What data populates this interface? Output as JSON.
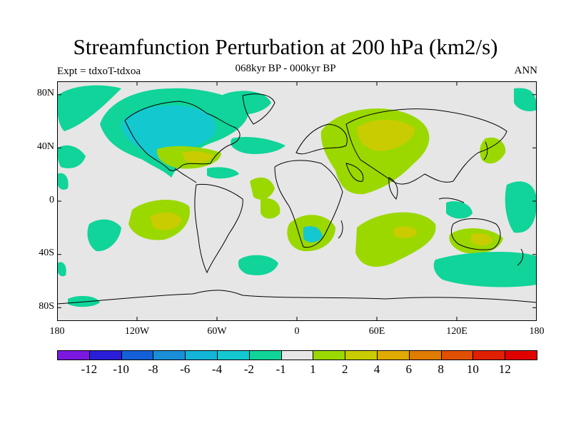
{
  "title": "Streamfunction Perturbation at 200 hPa (km2/s)",
  "left_label": "Expt = tdxoT-tdxoa",
  "center_label": "068kyr BP - 000kyr BP",
  "right_label": "ANN",
  "lat_ticks": [
    "80N",
    "40N",
    "0",
    "40S",
    "80S"
  ],
  "lon_ticks": [
    "180",
    "120W",
    "60W",
    "0",
    "60E",
    "120E",
    "180"
  ],
  "colorbar": {
    "labels": [
      "-12",
      "-10",
      "-8",
      "-6",
      "-4",
      "-2",
      "-1",
      "1",
      "2",
      "4",
      "6",
      "8",
      "10",
      "12"
    ],
    "colors": [
      "#7a18e0",
      "#2a1ed8",
      "#1460d8",
      "#1a8fd8",
      "#14b4d8",
      "#14c8d0",
      "#10d49a",
      "#e6e6e6",
      "#9ad800",
      "#c8cc00",
      "#e0aa00",
      "#e07c00",
      "#e05000",
      "#e02000",
      "#e00000"
    ]
  },
  "colors": {
    "missing": "#e6e6e6",
    "neg1": "#10d49a",
    "neg2": "#14c8d0",
    "pos1": "#9ad800",
    "pos2": "#c8cc00"
  }
}
